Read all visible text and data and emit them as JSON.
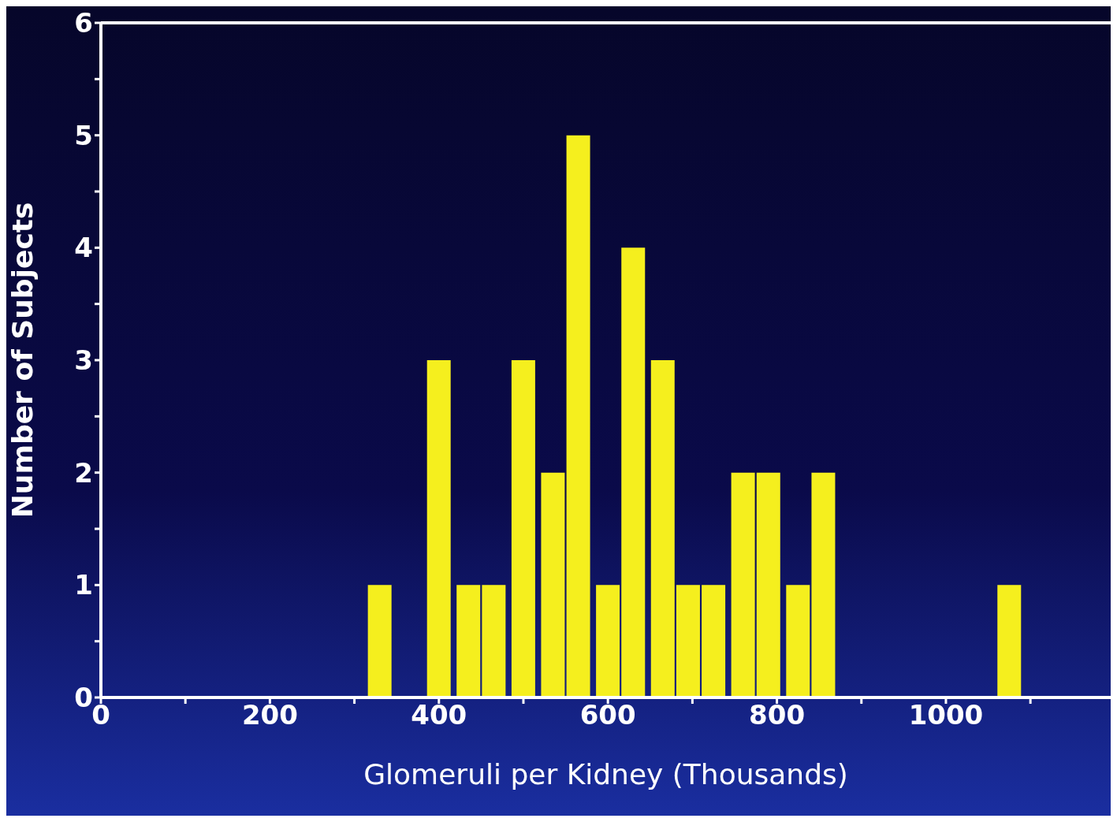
{
  "chart_data": {
    "type": "bar",
    "xlabel": "Glomeruli per Kidney (Thousands)",
    "ylabel": "Number of Subjects",
    "x": [
      330,
      400,
      435,
      465,
      500,
      535,
      565,
      600,
      630,
      665,
      695,
      725,
      760,
      790,
      825,
      855,
      1075
    ],
    "values": [
      1,
      3,
      1,
      1,
      3,
      2,
      5,
      1,
      4,
      3,
      1,
      1,
      2,
      2,
      1,
      2,
      1
    ],
    "color": "#f5ef1e",
    "xlim": [
      0,
      1195
    ],
    "xticks": [
      0,
      {
        "value": 100,
        "label": null
      },
      200,
      {
        "value": 300,
        "label": null
      },
      400,
      {
        "value": 500,
        "label": null
      },
      600,
      {
        "value": 700,
        "label": null
      },
      800,
      {
        "value": 900,
        "label": null
      },
      1000,
      {
        "value": 1100,
        "label": null
      }
    ],
    "ylim": [
      0,
      6
    ],
    "yticks": [
      0,
      {
        "value": 0.5,
        "label": null
      },
      1,
      {
        "value": 1.5,
        "label": null
      },
      2,
      {
        "value": 2.5,
        "label": null
      },
      3,
      {
        "value": 3.5,
        "label": null
      },
      4,
      {
        "value": 4.5,
        "label": null
      },
      5,
      {
        "value": 5.5,
        "label": null
      },
      6
    ]
  }
}
